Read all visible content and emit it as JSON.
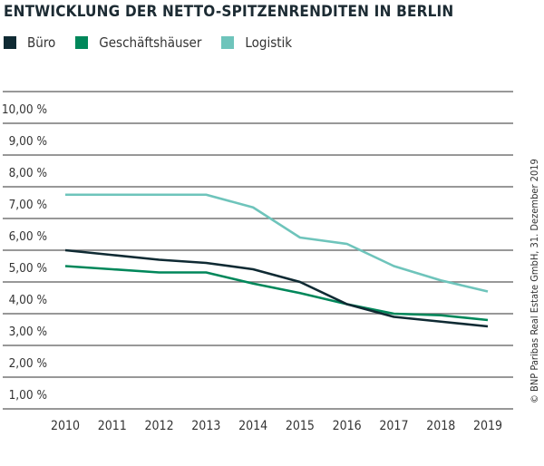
{
  "chart_data": {
    "type": "line",
    "title": "ENTWICKLUNG DER NETTO-SPITZENRENDITEN IN BERLIN",
    "categories": [
      "2010",
      "2011",
      "2012",
      "2013",
      "2014",
      "2015",
      "2016",
      "2017",
      "2018",
      "2019"
    ],
    "ylim": [
      0,
      10
    ],
    "yticks": [
      "1,00 %",
      "2,00 %",
      "3,00 %",
      "4,00 %",
      "5,00 %",
      "6,00 %",
      "7,00 %",
      "8,00 %",
      "9,00 %",
      "10,00 %"
    ],
    "grid": true,
    "legend": "top-left",
    "series": [
      {
        "name": "Büro",
        "color": "#0f2a33",
        "values": [
          5.0,
          4.85,
          4.7,
          4.6,
          4.4,
          4.0,
          3.3,
          2.9,
          2.75,
          2.6
        ]
      },
      {
        "name": "Geschäftshäuser",
        "color": "#00875a",
        "values": [
          4.5,
          4.4,
          4.3,
          4.3,
          3.95,
          3.65,
          3.3,
          3.0,
          2.95,
          2.8
        ]
      },
      {
        "name": "Logistik",
        "color": "#6ec4bb",
        "values": [
          6.75,
          6.75,
          6.75,
          6.75,
          6.35,
          5.4,
          5.2,
          4.5,
          4.05,
          3.7
        ]
      }
    ]
  },
  "source": "© BNP Paribas Real Estate GmbH, 31. Dezember 2019"
}
